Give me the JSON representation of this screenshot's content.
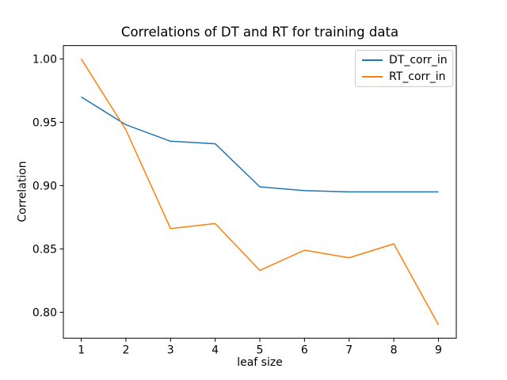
{
  "chart_data": {
    "type": "line",
    "title": "Correlations of DT and RT for training data",
    "xlabel": "leaf size",
    "ylabel": "Correlation",
    "x": [
      1,
      2,
      3,
      4,
      5,
      6,
      7,
      8,
      9
    ],
    "series": [
      {
        "name": "DT_corr_in",
        "color": "#1f77b4",
        "values": [
          0.97,
          0.948,
          0.935,
          0.933,
          0.899,
          0.896,
          0.895,
          0.895,
          0.895
        ]
      },
      {
        "name": "RT_corr_in",
        "color": "#ff7f0e",
        "values": [
          1.0,
          0.944,
          0.866,
          0.87,
          0.833,
          0.849,
          0.843,
          0.854,
          0.79
        ]
      }
    ],
    "xticks": [
      1,
      2,
      3,
      4,
      5,
      6,
      7,
      8,
      9
    ],
    "yticks": [
      1.0,
      0.95,
      0.9,
      0.85,
      0.8
    ],
    "ytick_labels": [
      "1.00",
      "0.95",
      "0.90",
      "0.85",
      "0.80"
    ],
    "xlim": [
      0.6,
      9.4
    ],
    "ylim": [
      0.7795,
      1.0105
    ],
    "grid": false,
    "legend_position": "upper right",
    "line_width": 1.5,
    "background_color": "#ffffff",
    "spine_color": "#000000"
  }
}
